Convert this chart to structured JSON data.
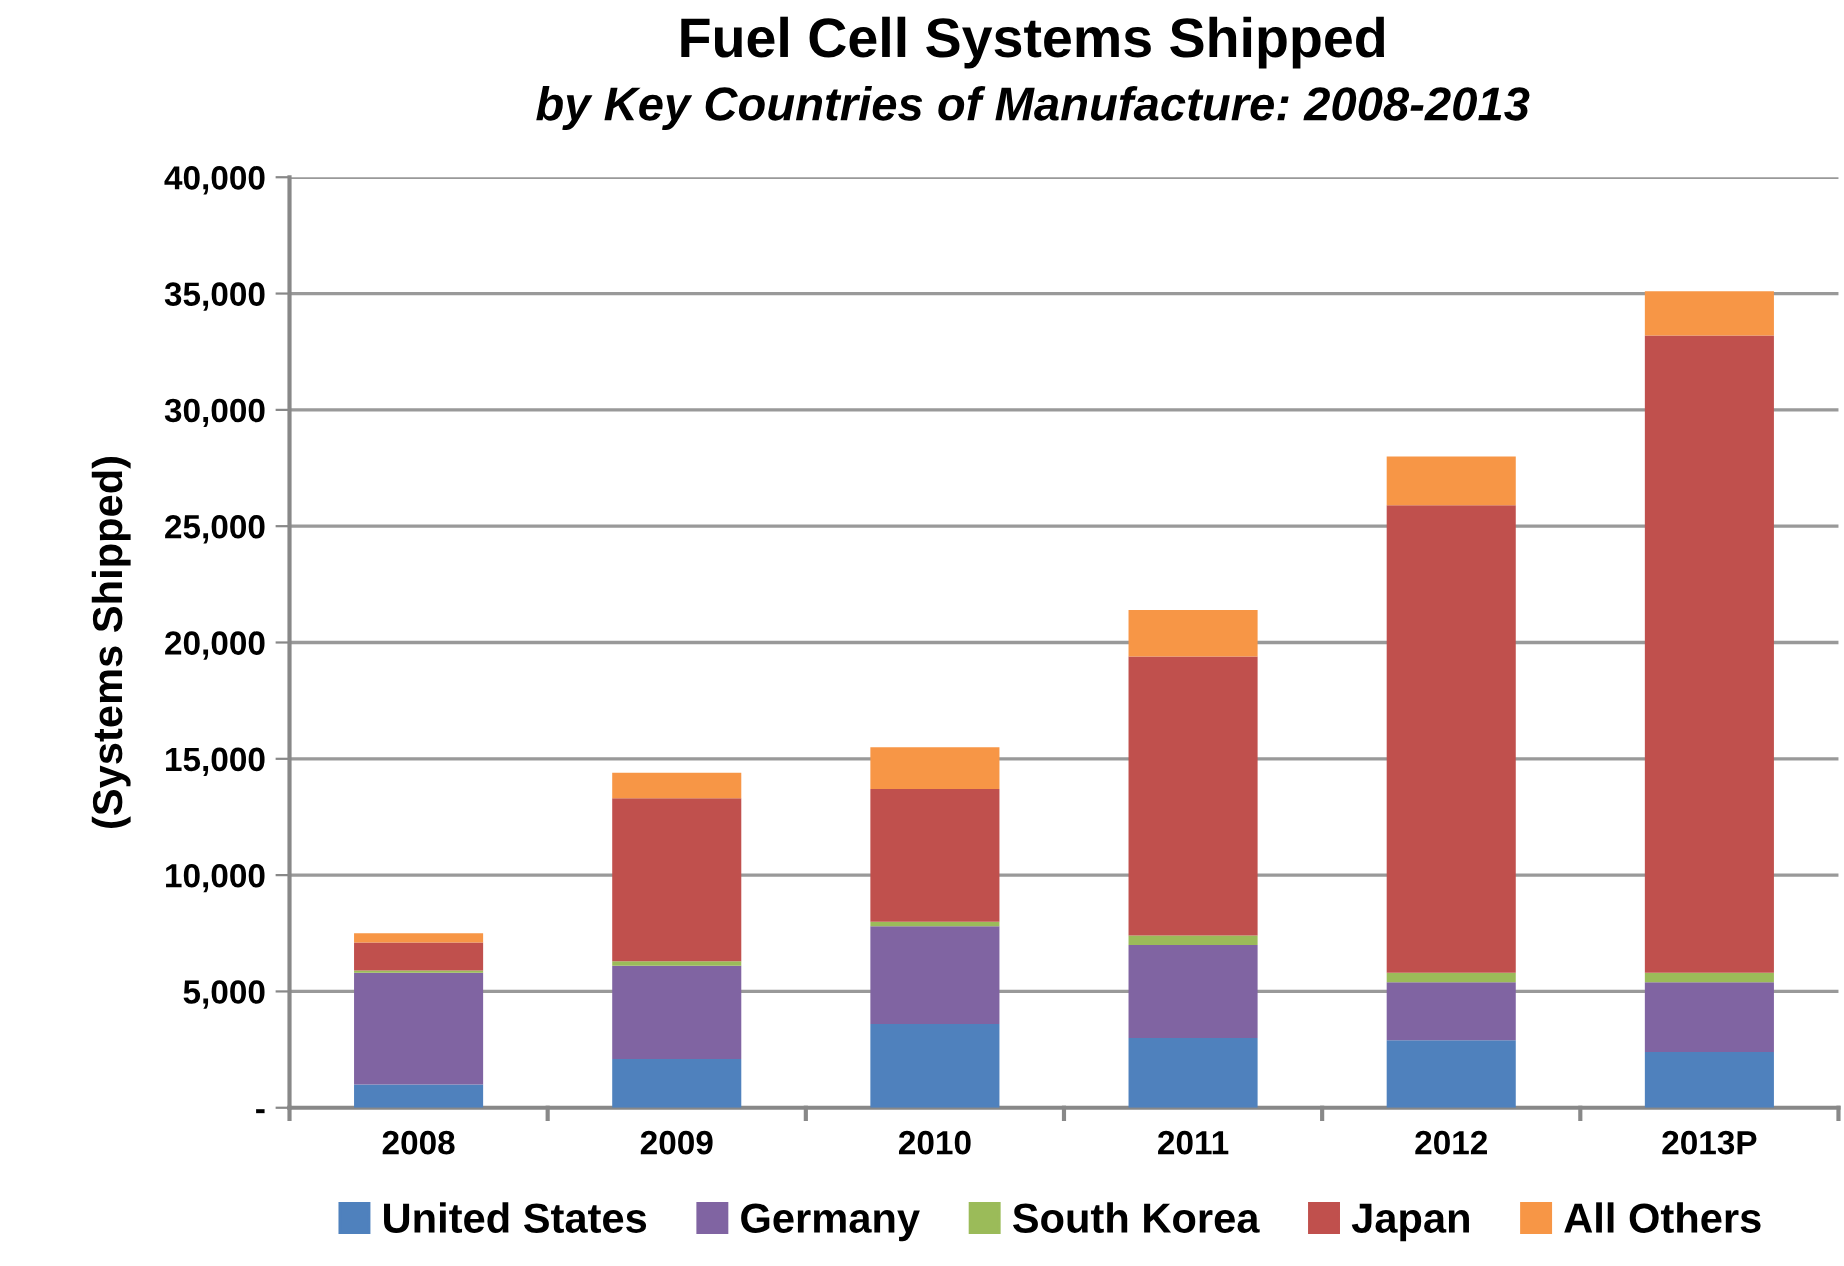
{
  "chart_data": {
    "type": "bar",
    "stacked": true,
    "title": "Fuel Cell Systems Shipped",
    "subtitle": "by Key Countries of Manufacture: 2008-2013",
    "ylabel": "(Systems Shipped)",
    "categories": [
      "2008",
      "2009",
      "2010",
      "2011",
      "2012",
      "2013P"
    ],
    "series": [
      {
        "name": "United States",
        "color": "#4f81bd",
        "values": [
          1000,
          2100,
          3600,
          3000,
          2900,
          2400
        ]
      },
      {
        "name": "Germany",
        "color": "#8064a2",
        "values": [
          4800,
          4000,
          4200,
          4000,
          2500,
          3000
        ]
      },
      {
        "name": "South Korea",
        "color": "#9bbb59",
        "values": [
          100,
          200,
          200,
          400,
          400,
          400
        ]
      },
      {
        "name": "Japan",
        "color": "#c0504d",
        "values": [
          1200,
          7000,
          5700,
          12000,
          20100,
          27400
        ]
      },
      {
        "name": "All Others",
        "color": "#f79646",
        "values": [
          400,
          1100,
          1800,
          2000,
          2100,
          1900
        ]
      }
    ],
    "ylim": [
      0,
      40000
    ],
    "yticks": [
      {
        "value": 0,
        "label": "-"
      },
      {
        "value": 5000,
        "label": "5,000"
      },
      {
        "value": 10000,
        "label": "10,000"
      },
      {
        "value": 15000,
        "label": "15,000"
      },
      {
        "value": 20000,
        "label": "20,000"
      },
      {
        "value": 25000,
        "label": "25,000"
      },
      {
        "value": 30000,
        "label": "30,000"
      },
      {
        "value": 35000,
        "label": "35,000"
      },
      {
        "value": 40000,
        "label": "40,000"
      }
    ],
    "grid": "y",
    "legend": "bottom"
  }
}
